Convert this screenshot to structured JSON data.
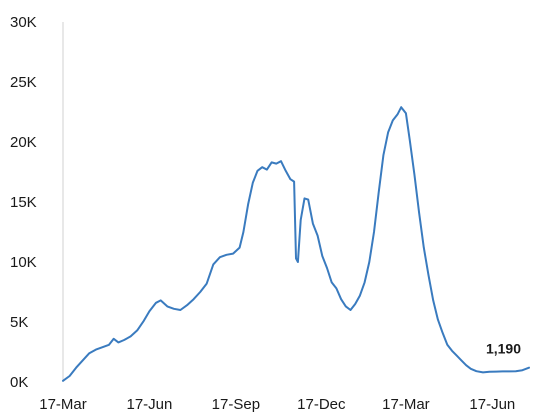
{
  "chart_data": {
    "type": "line",
    "title": "",
    "xlabel": "",
    "ylabel": "",
    "ylim": [
      0,
      30000
    ],
    "y_ticks": [
      0,
      5000,
      10000,
      15000,
      20000,
      25000,
      30000
    ],
    "y_tick_labels": [
      "0K",
      "5K",
      "10K",
      "15K",
      "20K",
      "25K",
      "30K"
    ],
    "x_ticks": [
      "2020-03-17",
      "2020-06-17",
      "2020-09-17",
      "2020-12-17",
      "2021-03-17",
      "2021-06-17"
    ],
    "x_tick_labels": [
      "17-Mar",
      "17-Jun",
      "17-Sep",
      "17-Dec",
      "17-Mar",
      "17-Jun"
    ],
    "xlim": [
      "2020-03-17",
      "2021-07-26"
    ],
    "grid": false,
    "line_color": "#3A7BBF",
    "series": [
      {
        "name": "",
        "points": [
          [
            "2020-03-17",
            100
          ],
          [
            "2020-03-24",
            500
          ],
          [
            "2020-03-31",
            1200
          ],
          [
            "2020-04-07",
            1800
          ],
          [
            "2020-04-14",
            2400
          ],
          [
            "2020-04-21",
            2700
          ],
          [
            "2020-04-28",
            2900
          ],
          [
            "2020-05-05",
            3100
          ],
          [
            "2020-05-10",
            3600
          ],
          [
            "2020-05-15",
            3300
          ],
          [
            "2020-05-21",
            3500
          ],
          [
            "2020-05-28",
            3800
          ],
          [
            "2020-06-04",
            4300
          ],
          [
            "2020-06-11",
            5100
          ],
          [
            "2020-06-17",
            5900
          ],
          [
            "2020-06-24",
            6600
          ],
          [
            "2020-06-29",
            6800
          ],
          [
            "2020-07-06",
            6300
          ],
          [
            "2020-07-13",
            6100
          ],
          [
            "2020-07-20",
            6000
          ],
          [
            "2020-07-27",
            6400
          ],
          [
            "2020-08-03",
            6900
          ],
          [
            "2020-08-10",
            7500
          ],
          [
            "2020-08-17",
            8200
          ],
          [
            "2020-08-24",
            9800
          ],
          [
            "2020-08-31",
            10400
          ],
          [
            "2020-09-07",
            10600
          ],
          [
            "2020-09-14",
            10700
          ],
          [
            "2020-09-21",
            11200
          ],
          [
            "2020-09-25",
            12500
          ],
          [
            "2020-09-30",
            14800
          ],
          [
            "2020-10-05",
            16600
          ],
          [
            "2020-10-10",
            17600
          ],
          [
            "2020-10-15",
            17900
          ],
          [
            "2020-10-20",
            17700
          ],
          [
            "2020-10-25",
            18300
          ],
          [
            "2020-10-30",
            18200
          ],
          [
            "2020-11-04",
            18400
          ],
          [
            "2020-11-09",
            17600
          ],
          [
            "2020-11-14",
            16900
          ],
          [
            "2020-11-18",
            16700
          ],
          [
            "2020-11-20",
            10300
          ],
          [
            "2020-11-22",
            10000
          ],
          [
            "2020-11-25",
            13500
          ],
          [
            "2020-11-29",
            15300
          ],
          [
            "2020-12-03",
            15200
          ],
          [
            "2020-12-08",
            13200
          ],
          [
            "2020-12-13",
            12200
          ],
          [
            "2020-12-18",
            10500
          ],
          [
            "2020-12-23",
            9500
          ],
          [
            "2020-12-28",
            8300
          ],
          [
            "2021-01-02",
            7800
          ],
          [
            "2021-01-07",
            6900
          ],
          [
            "2021-01-12",
            6300
          ],
          [
            "2021-01-17",
            6000
          ],
          [
            "2021-01-22",
            6500
          ],
          [
            "2021-01-27",
            7200
          ],
          [
            "2021-02-01",
            8300
          ],
          [
            "2021-02-06",
            10000
          ],
          [
            "2021-02-11",
            12500
          ],
          [
            "2021-02-16",
            15800
          ],
          [
            "2021-02-21",
            18900
          ],
          [
            "2021-02-26",
            20800
          ],
          [
            "2021-03-03",
            21800
          ],
          [
            "2021-03-08",
            22300
          ],
          [
            "2021-03-12",
            22900
          ],
          [
            "2021-03-17",
            22400
          ],
          [
            "2021-03-21",
            20200
          ],
          [
            "2021-03-26",
            17300
          ],
          [
            "2021-03-31",
            14100
          ],
          [
            "2021-04-05",
            11200
          ],
          [
            "2021-04-10",
            8900
          ],
          [
            "2021-04-15",
            6800
          ],
          [
            "2021-04-20",
            5200
          ],
          [
            "2021-04-25",
            4100
          ],
          [
            "2021-04-30",
            3100
          ],
          [
            "2021-05-05",
            2600
          ],
          [
            "2021-05-10",
            2200
          ],
          [
            "2021-05-15",
            1800
          ],
          [
            "2021-05-20",
            1400
          ],
          [
            "2021-05-25",
            1100
          ],
          [
            "2021-05-31",
            900
          ],
          [
            "2021-06-07",
            800
          ],
          [
            "2021-06-14",
            850
          ],
          [
            "2021-06-21",
            870
          ],
          [
            "2021-06-28",
            880
          ],
          [
            "2021-07-05",
            880
          ],
          [
            "2021-07-12",
            900
          ],
          [
            "2021-07-19",
            980
          ],
          [
            "2021-07-26",
            1190
          ]
        ]
      }
    ],
    "annotations": [
      {
        "date": "2021-07-26",
        "value": 1190,
        "text": "1,190"
      }
    ]
  }
}
